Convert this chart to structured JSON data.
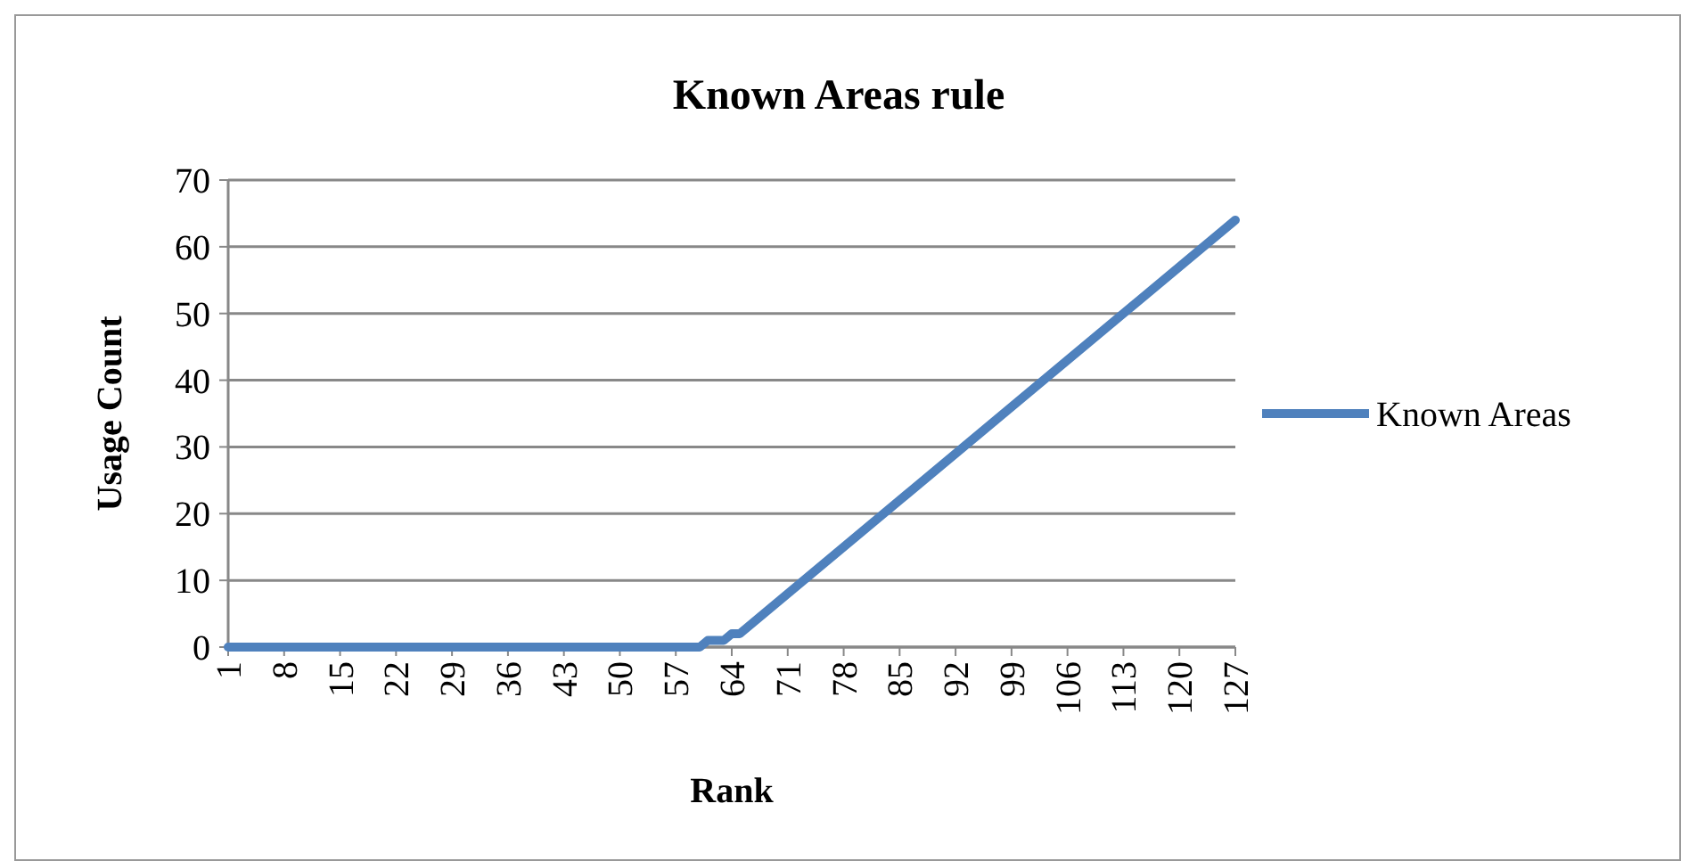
{
  "chart_data": {
    "type": "line",
    "title": "Known Areas rule",
    "xlabel": "Rank",
    "ylabel": "Usage Count",
    "xlim": [
      1,
      127
    ],
    "xticks": [
      1,
      8,
      15,
      22,
      29,
      36,
      43,
      50,
      57,
      64,
      71,
      78,
      85,
      92,
      99,
      106,
      113,
      120,
      127
    ],
    "ylim": [
      0,
      70
    ],
    "yticks": [
      0,
      10,
      20,
      30,
      40,
      50,
      60,
      70
    ],
    "grid": "y",
    "legend": "right",
    "series": [
      {
        "name": "Known Areas",
        "color": "#4f81bd",
        "x": [
          1,
          60,
          61,
          63,
          64,
          65,
          127
        ],
        "values": [
          0,
          0,
          1,
          1,
          2,
          2,
          64
        ]
      }
    ]
  }
}
